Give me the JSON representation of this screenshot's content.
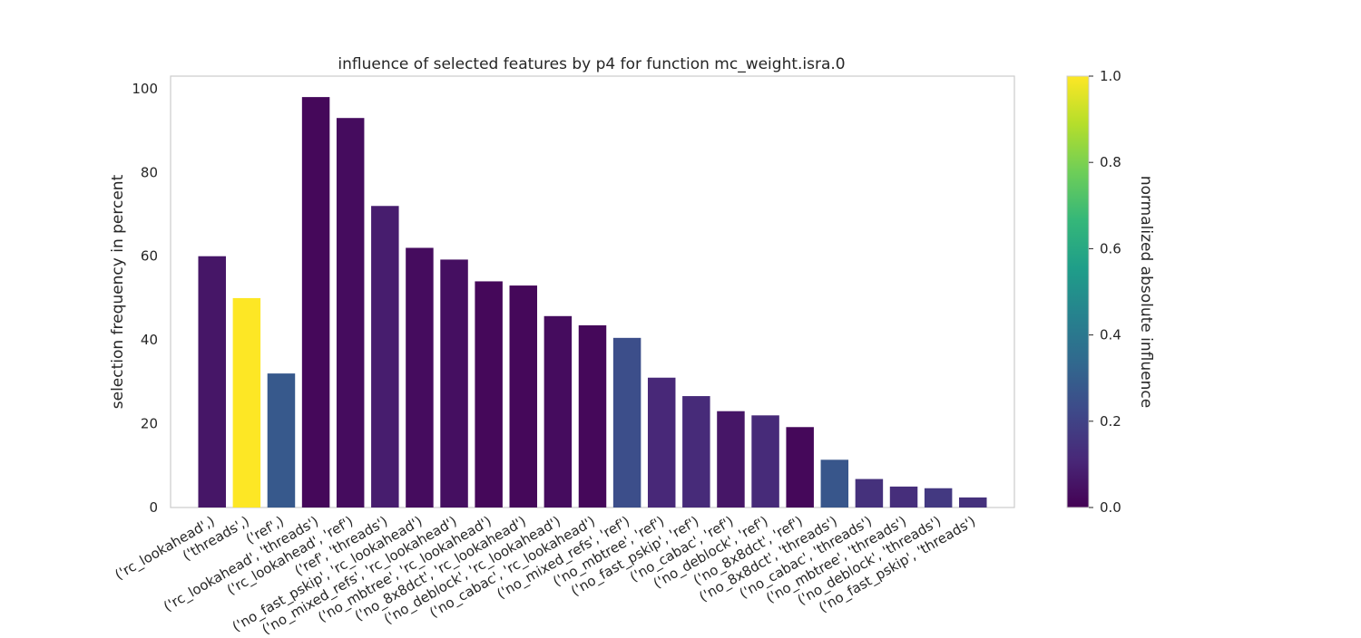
{
  "chart_data": {
    "type": "bar",
    "title": "influence of selected features by p4 for function mc_weight.isra.0",
    "xlabel": "",
    "ylabel": "selection frequency in percent",
    "ylim": [
      0,
      103
    ],
    "yticks": [
      0,
      20,
      40,
      60,
      80,
      100
    ],
    "grid": false,
    "categories": [
      "('rc_lookahead',)",
      "('threads',)",
      "('ref',)",
      "('rc_lookahead', 'threads')",
      "('rc_lookahead', 'ref')",
      "('ref', 'threads')",
      "('no_fast_pskip', 'rc_lookahead')",
      "('no_mixed_refs', 'rc_lookahead')",
      "('no_mbtree', 'rc_lookahead')",
      "('no_8x8dct', 'rc_lookahead')",
      "('no_deblock', 'rc_lookahead')",
      "('no_cabac', 'rc_lookahead')",
      "('no_mixed_refs', 'ref')",
      "('no_mbtree', 'ref')",
      "('no_fast_pskip', 'ref')",
      "('no_cabac', 'ref')",
      "('no_deblock', 'ref')",
      "('no_8x8dct', 'ref')",
      "('no_8x8dct', 'threads')",
      "('no_cabac', 'threads')",
      "('no_mbtree', 'threads')",
      "('no_deblock', 'threads')",
      "('no_fast_pskip', 'threads')"
    ],
    "values": [
      60,
      50,
      32,
      98,
      93,
      72,
      62,
      59.2,
      54,
      53,
      45.7,
      43.5,
      40.5,
      31,
      26.6,
      23,
      22,
      19.2,
      11.4,
      6.8,
      5,
      4.6,
      2.4
    ],
    "influence": [
      0.06,
      1.0,
      0.28,
      0.02,
      0.03,
      0.08,
      0.03,
      0.04,
      0.02,
      0.02,
      0.03,
      0.02,
      0.24,
      0.11,
      0.12,
      0.06,
      0.12,
      0.02,
      0.27,
      0.14,
      0.13,
      0.17,
      0.14
    ],
    "colorbar": {
      "label": "normalized absolute influence",
      "range": [
        0,
        1
      ],
      "ticks": [
        "0.0",
        "0.2",
        "0.4",
        "0.6",
        "0.8",
        "1.0"
      ],
      "colormap": "viridis",
      "stops": [
        "#440154",
        "#482878",
        "#3e4989",
        "#31688e",
        "#26828e",
        "#1f9e89",
        "#35b779",
        "#6ece58",
        "#b5de2b",
        "#fde725"
      ]
    }
  }
}
